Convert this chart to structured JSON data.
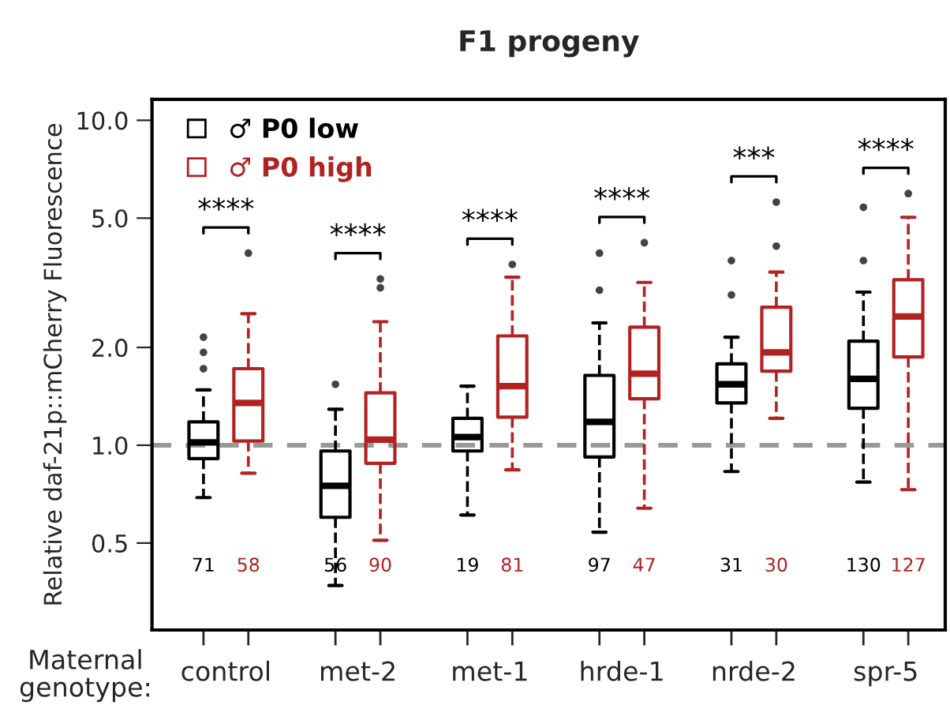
{
  "chart_data": {
    "type": "box",
    "title": "F1 progeny",
    "xlabel": "Maternal genotype:",
    "ylabel": "Relative daf-21p::mCherry Fluorescence",
    "categories": [
      "control",
      "met-2",
      "met-1",
      "hrde-1",
      "nrde-2",
      "spr-5"
    ],
    "series": [
      {
        "name": "♂ P0 low",
        "color": "#000000",
        "boxes": [
          {
            "low": 0.69,
            "q1": 0.91,
            "median": 1.02,
            "q3": 1.18,
            "high": 1.48,
            "outliers": [
              2.15,
              1.93,
              1.72
            ]
          },
          {
            "low": 0.37,
            "q1": 0.6,
            "median": 0.75,
            "q3": 0.96,
            "high": 1.29,
            "outliers": [
              1.54
            ]
          },
          {
            "low": 0.61,
            "q1": 0.96,
            "median": 1.06,
            "q3": 1.21,
            "high": 1.52
          },
          {
            "low": 0.54,
            "q1": 0.92,
            "median": 1.18,
            "q3": 1.64,
            "high": 2.38,
            "outliers": [
              3.0,
              3.9
            ]
          },
          {
            "low": 0.83,
            "q1": 1.35,
            "median": 1.54,
            "q3": 1.78,
            "high": 2.15,
            "outliers": [
              3.7,
              2.9
            ]
          },
          {
            "low": 0.77,
            "q1": 1.3,
            "median": 1.6,
            "q3": 2.09,
            "high": 2.96,
            "outliers": [
              5.4,
              3.7
            ]
          }
        ]
      },
      {
        "name": "♂ P0 high",
        "color": "#b22222",
        "boxes": [
          {
            "low": 0.82,
            "q1": 1.03,
            "median": 1.35,
            "q3": 1.72,
            "high": 2.54,
            "outliers": [
              3.9
            ]
          },
          {
            "low": 0.51,
            "q1": 0.88,
            "median": 1.04,
            "q3": 1.45,
            "high": 2.4,
            "outliers": [
              3.25,
              3.05
            ]
          },
          {
            "low": 0.84,
            "q1": 1.22,
            "median": 1.52,
            "q3": 2.17,
            "high": 3.29,
            "outliers": [
              3.6
            ]
          },
          {
            "low": 0.64,
            "q1": 1.39,
            "median": 1.66,
            "q3": 2.31,
            "high": 3.17,
            "outliers": [
              4.2
            ]
          },
          {
            "low": 1.21,
            "q1": 1.69,
            "median": 1.93,
            "q3": 2.66,
            "high": 3.41,
            "outliers": [
              5.6,
              4.1
            ]
          },
          {
            "low": 0.73,
            "q1": 1.87,
            "median": 2.49,
            "q3": 3.23,
            "high": 5.03,
            "outliers": [
              5.95
            ]
          }
        ]
      }
    ],
    "log": true,
    "ylim": [
      0.27,
      11.6
    ],
    "yticks": [
      {
        "value": 0.5,
        "label": "0.5"
      },
      {
        "value": 1,
        "label": "1.0"
      },
      {
        "value": 2,
        "label": "2.0"
      },
      {
        "value": 5,
        "label": "5.0"
      },
      {
        "value": 10,
        "label": "10.0"
      }
    ],
    "ref_lines": [
      {
        "axis": "y",
        "value": 1,
        "color": "#999999",
        "line_style": "dashed"
      }
    ],
    "legend": "top left",
    "grid": false,
    "annotations": [
      "****",
      "****",
      "****",
      "****",
      "***",
      "****",
      "71",
      "58",
      "56",
      "90",
      "19",
      "81",
      "97",
      "47",
      "31",
      "30",
      "130",
      "127"
    ]
  }
}
